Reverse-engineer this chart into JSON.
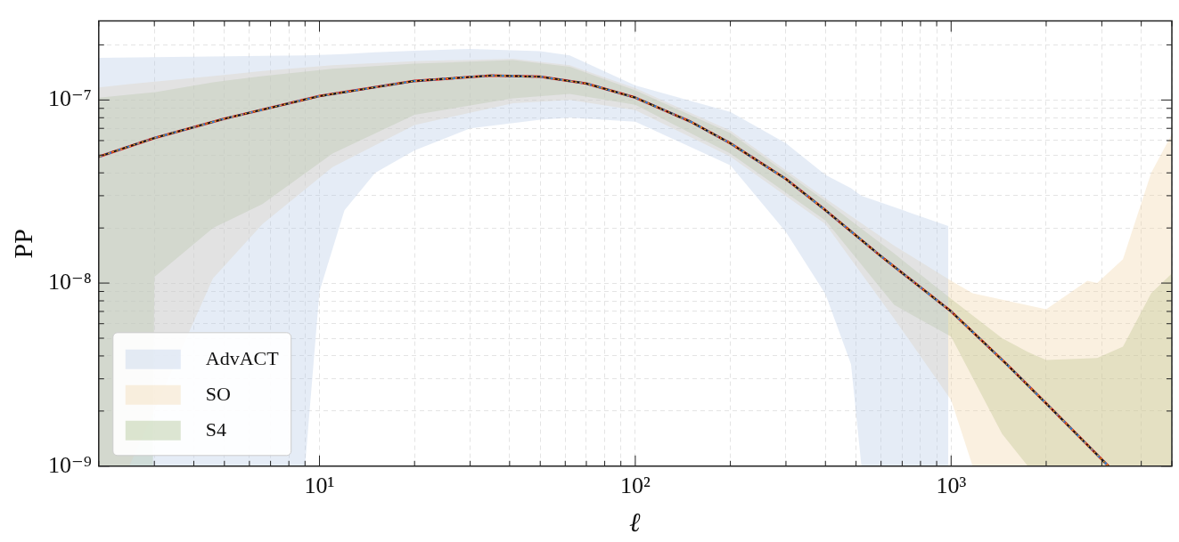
{
  "chart_data": {
    "type": "line",
    "xlabel": "ℓ",
    "ylabel": "PP",
    "log": "xy",
    "grid": true,
    "legend": "bottom left",
    "marker": "none",
    "xlim": [
      2,
      5000
    ],
    "xticks": [
      {
        "value": 2,
        "label": null
      },
      {
        "value": 3,
        "label": null
      },
      {
        "value": 4,
        "label": null
      },
      {
        "value": 5,
        "label": null
      },
      {
        "value": 6,
        "label": null
      },
      {
        "value": 7,
        "label": null
      },
      {
        "value": 8,
        "label": null
      },
      {
        "value": 9,
        "label": null
      },
      {
        "value": 10,
        "label": "10¹"
      },
      {
        "value": 20,
        "label": null
      },
      {
        "value": 30,
        "label": null
      },
      {
        "value": 40,
        "label": null
      },
      {
        "value": 50,
        "label": null
      },
      {
        "value": 60,
        "label": null
      },
      {
        "value": 70,
        "label": null
      },
      {
        "value": 80,
        "label": null
      },
      {
        "value": 90,
        "label": null
      },
      {
        "value": 100,
        "label": "10²"
      },
      {
        "value": 200,
        "label": null
      },
      {
        "value": 300,
        "label": null
      },
      {
        "value": 400,
        "label": null
      },
      {
        "value": 500,
        "label": null
      },
      {
        "value": 600,
        "label": null
      },
      {
        "value": 700,
        "label": null
      },
      {
        "value": 800,
        "label": null
      },
      {
        "value": 900,
        "label": null
      },
      {
        "value": 1000,
        "label": "10³"
      },
      {
        "value": 2000,
        "label": null
      },
      {
        "value": 3000,
        "label": null
      },
      {
        "value": 4000,
        "label": null
      },
      {
        "value": 5000,
        "label": null
      }
    ],
    "ylim": [
      1e-09,
      2.7e-07
    ],
    "yticks": [
      {
        "value": 1e-09,
        "label": "10⁻⁹"
      },
      {
        "value": 2e-09,
        "label": null
      },
      {
        "value": 3e-09,
        "label": null
      },
      {
        "value": 4e-09,
        "label": null
      },
      {
        "value": 5e-09,
        "label": null
      },
      {
        "value": 6e-09,
        "label": null
      },
      {
        "value": 7e-09,
        "label": null
      },
      {
        "value": 8e-09,
        "label": null
      },
      {
        "value": 9e-09,
        "label": null
      },
      {
        "value": 1e-08,
        "label": "10⁻⁸"
      },
      {
        "value": 2e-08,
        "label": null
      },
      {
        "value": 3e-08,
        "label": null
      },
      {
        "value": 4e-08,
        "label": null
      },
      {
        "value": 5e-08,
        "label": null
      },
      {
        "value": 6e-08,
        "label": null
      },
      {
        "value": 7e-08,
        "label": null
      },
      {
        "value": 8e-08,
        "label": null
      },
      {
        "value": 9e-08,
        "label": null
      },
      {
        "value": 1e-07,
        "label": "10⁻⁷"
      },
      {
        "value": 2e-07,
        "label": null
      }
    ],
    "series": [
      {
        "name": "AdvACT",
        "color": "#b4c8e6",
        "x": [
          2,
          9,
          10,
          12,
          15,
          20,
          30,
          50,
          62,
          100,
          200,
          300,
          400,
          482,
          520,
          980
        ],
        "values": [
          null,
          null,
          null,
          null,
          null,
          null,
          null,
          null,
          null,
          null,
          null,
          null,
          null,
          null,
          null,
          null
        ],
        "lower": [
          1e-09,
          1e-09,
          9e-09,
          2.5e-08,
          4e-08,
          5.3e-08,
          7e-08,
          7.8e-08,
          8e-08,
          7.6e-08,
          4.4e-08,
          1.9e-08,
          8.7e-09,
          3.6e-09,
          1e-09,
          1e-09
        ],
        "upper": [
          1.7e-07,
          1.75e-07,
          1.76e-07,
          1.78e-07,
          1.82e-07,
          1.86e-07,
          1.9e-07,
          1.85e-07,
          1.75e-07,
          1.2e-07,
          8.6e-08,
          5.8e-08,
          3.9e-08,
          3.3e-08,
          3e-08,
          2.05e-08
        ]
      },
      {
        "name": "SO",
        "color": "#f2d3a6",
        "x": [
          2,
          2.5,
          4.6,
          6.6,
          11,
          20,
          41,
          62,
          100,
          200,
          400,
          660,
          1000,
          1170,
          2000,
          2700,
          2900,
          3500,
          4300,
          5000
        ],
        "values": [
          null,
          null,
          null,
          null,
          null,
          null,
          null,
          null,
          null,
          null,
          null,
          null,
          null,
          null,
          null,
          null,
          null,
          null,
          null,
          null
        ],
        "lower": [
          1e-09,
          1e-09,
          1.06e-08,
          2.1e-08,
          4.3e-08,
          7.3e-08,
          9.6e-08,
          1e-07,
          8.8e-08,
          4.9e-08,
          2.1e-08,
          6.4e-09,
          2.3e-09,
          1e-09,
          1e-09,
          1e-09,
          1e-09,
          1e-09,
          1e-09,
          1e-09
        ],
        "upper": [
          1.17e-07,
          1.22e-07,
          1.35e-07,
          1.44e-07,
          1.55e-07,
          1.63e-07,
          1.68e-07,
          1.55e-07,
          1.16e-07,
          6.8e-08,
          2.9e-08,
          1.6e-08,
          1.03e-08,
          8.8e-09,
          7.2e-09,
          1.03e-08,
          1e-08,
          1.35e-08,
          4e-08,
          6.5e-08
        ]
      },
      {
        "name": "S4",
        "color": "#9fb87e",
        "x": [
          2,
          2.97,
          3,
          4.6,
          6.6,
          11,
          20,
          41,
          62,
          100,
          200,
          400,
          660,
          1000,
          1450,
          1750,
          2000,
          2900,
          3500,
          4300,
          5000
        ],
        "values": [
          null,
          null,
          null,
          null,
          null,
          null,
          null,
          null,
          null,
          null,
          null,
          null,
          null,
          null,
          null,
          null,
          null,
          null,
          null,
          null,
          null
        ],
        "lower": [
          1e-09,
          1e-09,
          1.08e-08,
          2e-08,
          2.7e-08,
          5.1e-08,
          8.3e-08,
          1.02e-07,
          1.08e-07,
          9.4e-08,
          5.1e-08,
          2.2e-08,
          7.6e-09,
          5.1e-09,
          1.5e-09,
          1e-09,
          1e-09,
          1e-09,
          1e-09,
          1e-09,
          1e-09
        ],
        "upper": [
          1.03e-07,
          1.1e-07,
          1.1e-07,
          1.25e-07,
          1.35e-07,
          1.48e-07,
          1.58e-07,
          1.65e-07,
          1.52e-07,
          1.13e-07,
          6.6e-08,
          2.8e-08,
          1.45e-08,
          8.2e-09,
          5e-09,
          4.2e-09,
          3.8e-09,
          3.9e-09,
          4.5e-09,
          8.8e-09,
          1.13e-08
        ]
      },
      {
        "color": "#e8251f",
        "line_style": "solid",
        "x": [
          2,
          3,
          5,
          10,
          20,
          35,
          50,
          70,
          100,
          150,
          200,
          300,
          400,
          600,
          1000,
          1500,
          2000,
          3150
        ],
        "values": [
          4.9e-08,
          6.2e-08,
          7.9e-08,
          1.05e-07,
          1.27e-07,
          1.36e-07,
          1.34e-07,
          1.23e-07,
          1.03e-07,
          7.6e-08,
          5.8e-08,
          3.7e-08,
          2.5e-08,
          1.4e-08,
          7e-09,
          3.6e-09,
          2.2e-09,
          1e-09
        ]
      },
      {
        "color": "#2f7fc9",
        "line_style": "dashed",
        "x": [
          2,
          3,
          5,
          10,
          20,
          35,
          50,
          70,
          100,
          150,
          200,
          300,
          400,
          600,
          1000,
          1500,
          2000,
          3150
        ],
        "values": [
          4.9e-08,
          6.2e-08,
          7.9e-08,
          1.05e-07,
          1.27e-07,
          1.36e-07,
          1.34e-07,
          1.23e-07,
          1.03e-07,
          7.6e-08,
          5.8e-08,
          3.7e-08,
          2.5e-08,
          1.4e-08,
          7e-09,
          3.6e-09,
          2.2e-09,
          1e-09
        ]
      },
      {
        "color": "#111111",
        "line_style": "dashed",
        "x": [
          2,
          3,
          5,
          10,
          20,
          35,
          50,
          70,
          100,
          150,
          200,
          300,
          400,
          600,
          1000,
          1500,
          2000,
          3150
        ],
        "values": [
          4.9e-08,
          6.2e-08,
          7.9e-08,
          1.05e-07,
          1.27e-07,
          1.36e-07,
          1.34e-07,
          1.23e-07,
          1.03e-07,
          7.6e-08,
          5.8e-08,
          3.7e-08,
          2.5e-08,
          1.4e-08,
          7e-09,
          3.6e-09,
          2.2e-09,
          1e-09
        ]
      },
      {
        "color": "#f5a623",
        "line_style": "dotted",
        "x": [
          2,
          3,
          5,
          10,
          20,
          35,
          50,
          70,
          100,
          150,
          200,
          300,
          400,
          600,
          1000,
          1500,
          2000,
          3150
        ],
        "values": [
          4.9e-08,
          6.2e-08,
          7.9e-08,
          1.05e-07,
          1.27e-07,
          1.36e-07,
          1.34e-07,
          1.23e-07,
          1.03e-07,
          7.6e-08,
          5.8e-08,
          3.7e-08,
          2.5e-08,
          1.4e-08,
          7e-09,
          3.6e-09,
          2.2e-09,
          1e-09
        ]
      }
    ]
  }
}
